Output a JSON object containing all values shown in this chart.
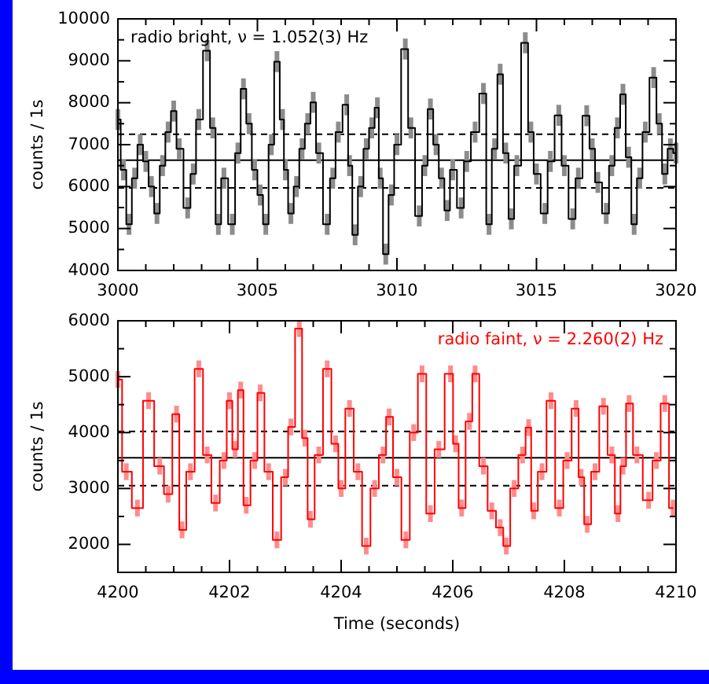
{
  "chart_data": [
    {
      "type": "step",
      "xlabel": null,
      "ylabel": "counts / 1s",
      "legend": "top left",
      "xlim": [
        3000,
        3020
      ],
      "ylim": [
        4000,
        10000
      ],
      "xticks": [
        3000,
        {
          "value": 3001,
          "label": null
        },
        {
          "value": 3002,
          "label": null
        },
        {
          "value": 3003,
          "label": null
        },
        {
          "value": 3004,
          "label": null
        },
        3005,
        {
          "value": 3006,
          "label": null
        },
        {
          "value": 3007,
          "label": null
        },
        {
          "value": 3008,
          "label": null
        },
        {
          "value": 3009,
          "label": null
        },
        3010,
        {
          "value": 3011,
          "label": null
        },
        {
          "value": 3012,
          "label": null
        },
        {
          "value": 3013,
          "label": null
        },
        {
          "value": 3014,
          "label": null
        },
        3015,
        {
          "value": 3016,
          "label": null
        },
        {
          "value": 3017,
          "label": null
        },
        {
          "value": 3018,
          "label": null
        },
        {
          "value": 3019,
          "label": null
        },
        3020
      ],
      "yticks": [
        4000,
        {
          "value": 4500,
          "label": null
        },
        5000,
        {
          "value": 5500,
          "label": null
        },
        6000,
        {
          "value": 6500,
          "label": null
        },
        7000,
        {
          "value": 7500,
          "label": null
        },
        8000,
        {
          "value": 8500,
          "label": null
        },
        9000,
        {
          "value": 9500,
          "label": null
        },
        10000
      ],
      "ref_lines": [
        {
          "axis": "y",
          "value": 6630,
          "label": null,
          "color": "#000000",
          "line_style": "solid"
        },
        {
          "axis": "y",
          "value": 7250,
          "label": null,
          "color": "#000000",
          "line_style": "dashed"
        },
        {
          "axis": "y",
          "value": 5970,
          "label": null,
          "color": "#000000",
          "line_style": "dashed"
        }
      ],
      "series": [
        {
          "name": "radio bright, ν = 1.052(3) Hz",
          "color": "#000000",
          "x": [
            3000.0,
            3000.2,
            3000.4,
            3000.6,
            3000.8,
            3001.0,
            3001.2,
            3001.4,
            3001.6,
            3001.8,
            3002.0,
            3002.2,
            3002.5,
            3002.7,
            3002.9,
            3003.2,
            3003.4,
            3003.6,
            3003.8,
            3004.1,
            3004.3,
            3004.5,
            3004.7,
            3004.9,
            3005.1,
            3005.3,
            3005.5,
            3005.7,
            3005.9,
            3006.0,
            3006.2,
            3006.4,
            3006.6,
            3006.8,
            3007.0,
            3007.2,
            3007.5,
            3007.7,
            3007.9,
            3008.2,
            3008.3,
            3008.5,
            3008.7,
            3008.9,
            3009.1,
            3009.3,
            3009.4,
            3009.6,
            3009.8,
            3010.0,
            3010.3,
            3010.5,
            3010.8,
            3011.0,
            3011.2,
            3011.4,
            3011.6,
            3011.8,
            3012.0,
            3012.3,
            3012.5,
            3012.8,
            3013.1,
            3013.3,
            3013.5,
            3013.7,
            3013.9,
            3014.1,
            3014.3,
            3014.6,
            3014.8,
            3015.0,
            3015.3,
            3015.5,
            3015.8,
            3016.0,
            3016.3,
            3016.5,
            3016.8,
            3017.0,
            3017.2,
            3017.5,
            3017.7,
            3017.9,
            3018.1,
            3018.3,
            3018.5,
            3018.7,
            3018.9,
            3019.2,
            3019.4,
            3019.6,
            3019.8,
            3020.0
          ],
          "values": [
            7600,
            6400,
            5100,
            6200,
            7000,
            6600,
            6000,
            5360,
            6500,
            7300,
            7800,
            6900,
            5490,
            6300,
            7600,
            9240,
            7400,
            5100,
            6200,
            5100,
            6800,
            8330,
            7500,
            6400,
            5800,
            5100,
            7000,
            8980,
            7600,
            6400,
            5360,
            6000,
            6900,
            7500,
            8010,
            6800,
            5100,
            6200,
            7300,
            7950,
            6500,
            4850,
            6000,
            6900,
            7400,
            7880,
            6200,
            4390,
            5800,
            7000,
            9280,
            7400,
            5300,
            6500,
            7850,
            7000,
            6200,
            5430,
            6400,
            5490,
            6600,
            7300,
            8220,
            5100,
            6900,
            8680,
            6800,
            5230,
            6500,
            9430,
            7300,
            6300,
            5360,
            6600,
            7700,
            6500,
            5230,
            6200,
            7690,
            6900,
            6100,
            5360,
            6500,
            7400,
            8200,
            6700,
            5100,
            6200,
            7300,
            8600,
            7500,
            6300,
            6900,
            6800
          ],
          "errors": [
            250,
            250,
            250,
            250,
            250,
            250,
            250,
            250,
            250,
            250,
            250,
            250,
            250,
            250,
            250,
            250,
            250,
            250,
            250,
            250,
            250,
            250,
            250,
            250,
            250,
            250,
            250,
            250,
            250,
            250,
            250,
            250,
            250,
            250,
            250,
            250,
            250,
            250,
            250,
            250,
            250,
            250,
            250,
            250,
            250,
            250,
            250,
            250,
            250,
            250,
            250,
            250,
            250,
            250,
            250,
            250,
            250,
            250,
            250,
            250,
            250,
            250,
            250,
            250,
            250,
            250,
            250,
            250,
            250,
            250,
            250,
            250,
            250,
            250,
            250,
            250,
            250,
            250,
            250,
            250,
            250,
            250,
            250,
            250,
            250,
            250,
            250,
            250,
            250,
            250,
            250,
            250,
            250,
            250
          ]
        }
      ]
    },
    {
      "type": "step",
      "xlabel": "Time (seconds)",
      "ylabel": "counts / 1s",
      "legend": "top right",
      "xlim": [
        4200,
        4210
      ],
      "ylim": [
        1500,
        6000
      ],
      "xticks": [
        4200,
        {
          "value": 4200.5,
          "label": null
        },
        {
          "value": 4201,
          "label": null
        },
        {
          "value": 4201.5,
          "label": null
        },
        4202,
        {
          "value": 4202.5,
          "label": null
        },
        {
          "value": 4203,
          "label": null
        },
        {
          "value": 4203.5,
          "label": null
        },
        4204,
        {
          "value": 4204.5,
          "label": null
        },
        {
          "value": 4205,
          "label": null
        },
        {
          "value": 4205.5,
          "label": null
        },
        4206,
        {
          "value": 4206.5,
          "label": null
        },
        {
          "value": 4207,
          "label": null
        },
        {
          "value": 4207.5,
          "label": null
        },
        4208,
        {
          "value": 4208.5,
          "label": null
        },
        {
          "value": 4209,
          "label": null
        },
        {
          "value": 4209.5,
          "label": null
        },
        4210
      ],
      "yticks": [
        {
          "value": 1500,
          "label": null
        },
        2000,
        {
          "value": 2500,
          "label": null
        },
        3000,
        {
          "value": 3500,
          "label": null
        },
        4000,
        {
          "value": 4500,
          "label": null
        },
        5000,
        {
          "value": 5500,
          "label": null
        },
        6000
      ],
      "ref_lines": [
        {
          "axis": "y",
          "value": 3550,
          "label": null,
          "color": "#000000",
          "line_style": "solid"
        },
        {
          "axis": "y",
          "value": 4020,
          "label": null,
          "color": "#000000",
          "line_style": "dashed"
        },
        {
          "axis": "y",
          "value": 3050,
          "label": null,
          "color": "#000000",
          "line_style": "dashed"
        }
      ],
      "series": [
        {
          "name": "radio faint, ν = 2.260(2) Hz",
          "color": "#ff0000",
          "x": [
            4200.0,
            4200.15,
            4200.35,
            4200.55,
            4200.75,
            4200.9,
            4201.05,
            4201.15,
            4201.3,
            4201.45,
            4201.6,
            4201.75,
            4201.9,
            4202.0,
            4202.1,
            4202.2,
            4202.3,
            4202.45,
            4202.55,
            4202.7,
            4202.85,
            4203.0,
            4203.1,
            4203.25,
            4203.35,
            4203.45,
            4203.6,
            4203.75,
            4203.9,
            4204.0,
            4204.15,
            4204.3,
            4204.45,
            4204.6,
            4204.75,
            4204.86,
            4205.0,
            4205.16,
            4205.3,
            4205.45,
            4205.6,
            4205.75,
            4205.96,
            4206.05,
            4206.16,
            4206.3,
            4206.4,
            4206.55,
            4206.7,
            4206.85,
            4206.96,
            4207.1,
            4207.25,
            4207.36,
            4207.45,
            4207.6,
            4207.76,
            4207.91,
            4208.05,
            4208.21,
            4208.3,
            4208.41,
            4208.55,
            4208.7,
            4208.85,
            4208.96,
            4209.05,
            4209.16,
            4209.3,
            4209.51,
            4209.65,
            4209.8,
            4209.95
          ],
          "values": [
            4950,
            3300,
            2650,
            4570,
            3400,
            2900,
            4330,
            2260,
            3300,
            5140,
            3600,
            2740,
            3500,
            4570,
            3700,
            4760,
            2700,
            3500,
            4710,
            3300,
            2080,
            3200,
            4100,
            5860,
            3900,
            2450,
            3600,
            5140,
            3800,
            3000,
            4430,
            3300,
            1970,
            3000,
            3600,
            4280,
            3200,
            2080,
            4000,
            5050,
            2550,
            3700,
            5050,
            3800,
            2650,
            4200,
            5050,
            3400,
            2600,
            2300,
            1970,
            3000,
            3600,
            4090,
            2600,
            3300,
            4570,
            2650,
            3500,
            4430,
            3200,
            2360,
            3300,
            4470,
            3600,
            2550,
            3400,
            4520,
            3600,
            2790,
            3500,
            4520,
            2650
          ],
          "errors": [
            150,
            150,
            150,
            150,
            150,
            150,
            150,
            150,
            150,
            150,
            150,
            150,
            150,
            150,
            150,
            150,
            150,
            150,
            150,
            150,
            150,
            150,
            150,
            150,
            150,
            150,
            150,
            150,
            150,
            150,
            150,
            150,
            150,
            150,
            150,
            150,
            150,
            150,
            150,
            150,
            150,
            150,
            150,
            150,
            150,
            150,
            150,
            150,
            150,
            150,
            150,
            150,
            150,
            150,
            150,
            150,
            150,
            150,
            150,
            150,
            150,
            150,
            150,
            150,
            150,
            150,
            150,
            150,
            150,
            150,
            150,
            150,
            150
          ]
        }
      ]
    }
  ]
}
